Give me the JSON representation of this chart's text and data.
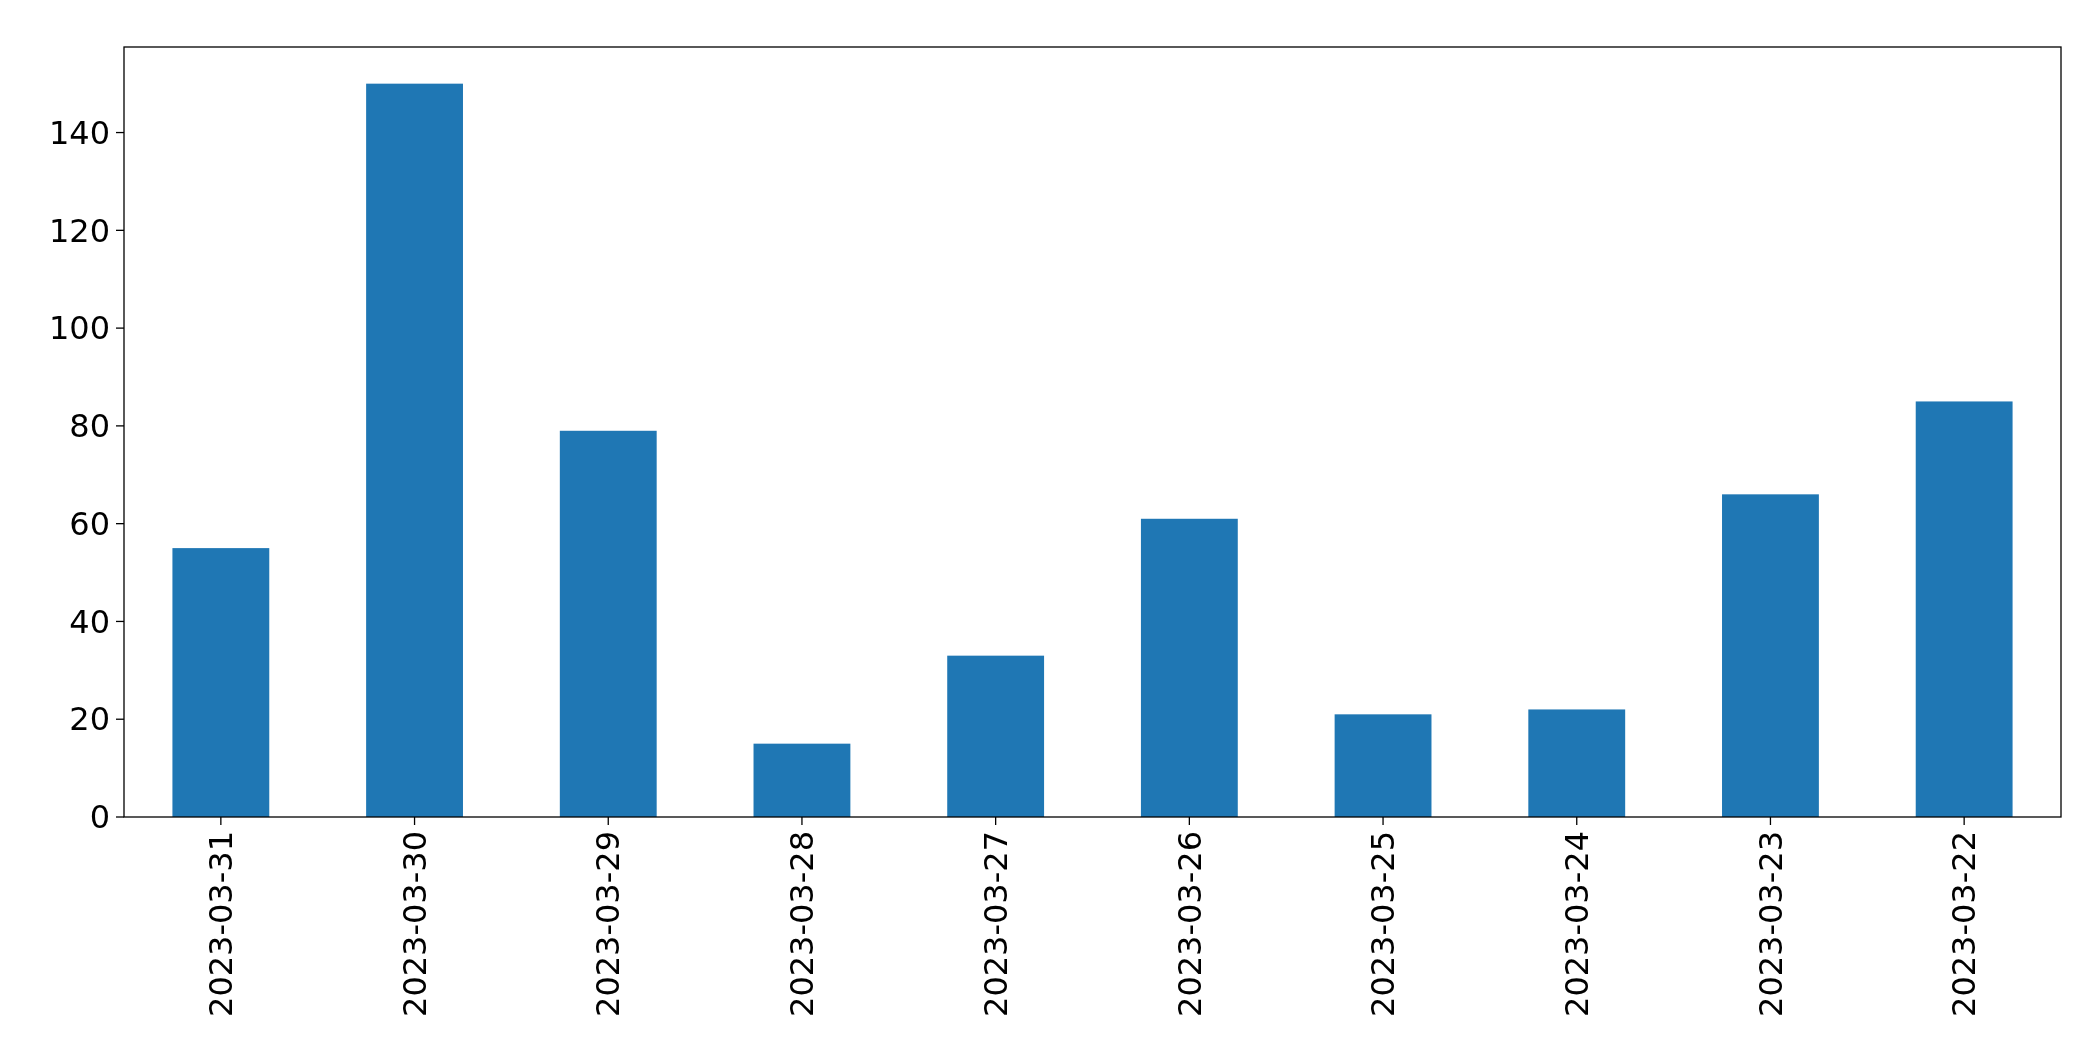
{
  "chart_data": {
    "type": "bar",
    "categories": [
      "2023-03-31",
      "2023-03-30",
      "2023-03-29",
      "2023-03-28",
      "2023-03-27",
      "2023-03-26",
      "2023-03-25",
      "2023-03-24",
      "2023-03-23",
      "2023-03-22"
    ],
    "values": [
      55,
      150,
      79,
      15,
      33,
      61,
      21,
      22,
      66,
      85
    ],
    "color": "#1f77b4",
    "ylim": [
      0,
      157.5
    ],
    "yticks": [
      0,
      20,
      40,
      60,
      80,
      100,
      120,
      140
    ],
    "grid": false
  }
}
